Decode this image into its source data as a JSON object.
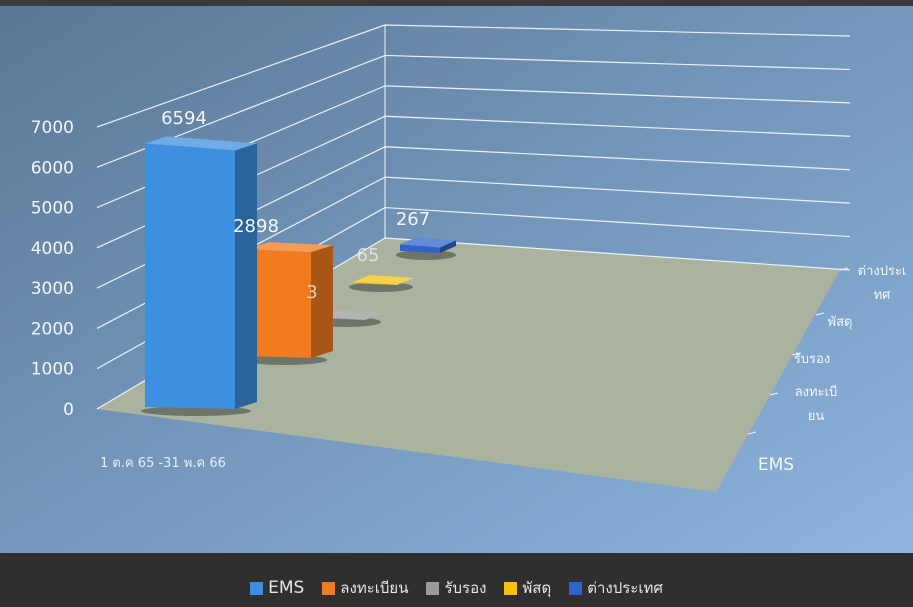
{
  "chart_data": {
    "type": "bar",
    "style": "3d-column",
    "categories": [
      "1 ต.ค 65 -31 พ.ค 66"
    ],
    "series": [
      {
        "name": "EMS",
        "values": [
          6594
        ],
        "color": "#3d8fe0"
      },
      {
        "name": "ลงทะเบียน",
        "values": [
          2898
        ],
        "color": "#f27a1f"
      },
      {
        "name": "รับรอง",
        "values": [
          3
        ],
        "color": "#9b9b9b"
      },
      {
        "name": "พัสดุ",
        "values": [
          65
        ],
        "color": "#f4c20d"
      },
      {
        "name": "ต่างประเทศ",
        "values": [
          267
        ],
        "color": "#2f63c9"
      }
    ],
    "y_ticks": [
      "0",
      "1000",
      "2000",
      "3000",
      "4000",
      "5000",
      "6000",
      "7000"
    ],
    "ylim": [
      0,
      7000
    ],
    "depth_axis_labels": [
      [
        "ต่างประเ",
        "ทศ"
      ],
      [
        "พัสดุ"
      ],
      [
        "รับรอง"
      ],
      [
        "ลงทะเบี",
        "ยน"
      ],
      [
        "EMS"
      ]
    ],
    "data_labels": [
      "6594",
      "2898",
      "3",
      "65",
      "267"
    ],
    "grid": true,
    "legend_position": "bottom"
  },
  "colors": {
    "background_top_left": "#5a7896",
    "background_bottom_right": "#8db5df",
    "floor": "#a9b3a0",
    "footer": "#2f2f2f",
    "legend_text": "#e6e6e6"
  }
}
